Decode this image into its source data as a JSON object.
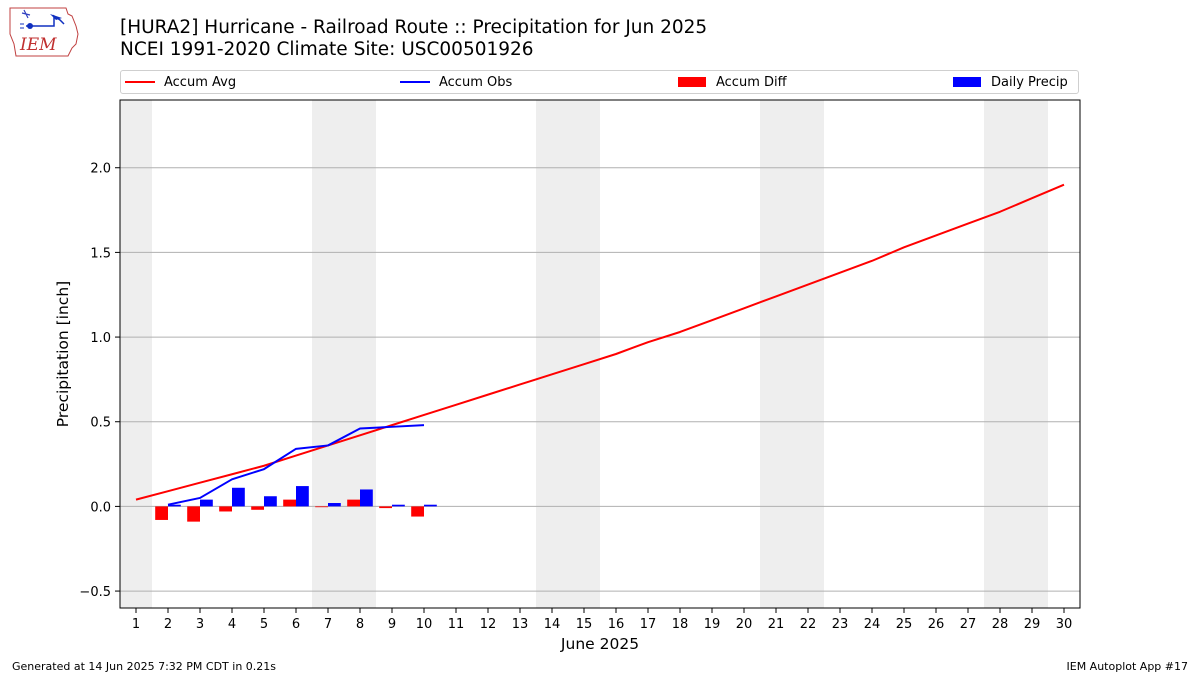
{
  "logo": {
    "text": "IEM"
  },
  "header": {
    "title": "[HURA2] Hurricane - Railroad Route :: Precipitation for Jun 2025",
    "subtitle": "NCEI 1991-2020 Climate Site: USC00501926"
  },
  "legend": {
    "items": [
      {
        "label": "Accum Avg",
        "kind": "line",
        "color": "#ff0000"
      },
      {
        "label": "Accum Obs",
        "kind": "line",
        "color": "#0000ff"
      },
      {
        "label": "Accum Diff",
        "kind": "bar",
        "color": "#ff0000"
      },
      {
        "label": "Daily Precip",
        "kind": "bar",
        "color": "#0000ff"
      }
    ]
  },
  "chart_data": {
    "type": "line",
    "xlabel": "June 2025",
    "ylabel": "Precipitation [inch]",
    "xlim": [
      0.5,
      30.5
    ],
    "ylim": [
      -0.6,
      2.4
    ],
    "yticks": [
      -0.5,
      0.0,
      0.5,
      1.0,
      1.5,
      2.0
    ],
    "ytick_labels": [
      "−0.5",
      "0.0",
      "0.5",
      "1.0",
      "1.5",
      "2.0"
    ],
    "xticks": [
      1,
      2,
      3,
      4,
      5,
      6,
      7,
      8,
      9,
      10,
      11,
      12,
      13,
      14,
      15,
      16,
      17,
      18,
      19,
      20,
      21,
      22,
      23,
      24,
      25,
      26,
      27,
      28,
      29,
      30
    ],
    "xtick_labels": [
      "1",
      "2",
      "3",
      "4",
      "5",
      "6",
      "7",
      "8",
      "9",
      "10",
      "11",
      "12",
      "13",
      "14",
      "15",
      "16",
      "17",
      "18",
      "19",
      "20",
      "21",
      "22",
      "23",
      "24",
      "25",
      "26",
      "27",
      "28",
      "29",
      "30"
    ],
    "grid": "y",
    "weekend_spans": [
      [
        0.5,
        1.5
      ],
      [
        6.5,
        8.5
      ],
      [
        13.5,
        15.5
      ],
      [
        20.5,
        22.5
      ],
      [
        27.5,
        29.5
      ]
    ],
    "weekend_color": "#eeeeee",
    "series": [
      {
        "name": "Accum Avg",
        "kind": "line",
        "color": "#ff0000",
        "x": [
          1,
          2,
          3,
          4,
          5,
          6,
          7,
          8,
          9,
          10,
          11,
          12,
          13,
          14,
          15,
          16,
          17,
          18,
          19,
          20,
          21,
          22,
          23,
          24,
          25,
          26,
          27,
          28,
          29,
          30
        ],
        "values": [
          0.04,
          0.09,
          0.14,
          0.19,
          0.24,
          0.3,
          0.36,
          0.42,
          0.48,
          0.54,
          0.6,
          0.66,
          0.72,
          0.78,
          0.84,
          0.9,
          0.97,
          1.03,
          1.1,
          1.17,
          1.24,
          1.31,
          1.38,
          1.45,
          1.53,
          1.6,
          1.67,
          1.74,
          1.82,
          1.9
        ]
      },
      {
        "name": "Accum Obs",
        "kind": "line",
        "color": "#0000ff",
        "x": [
          2,
          3,
          4,
          5,
          6,
          7,
          8,
          9,
          10
        ],
        "values": [
          0.01,
          0.05,
          0.16,
          0.22,
          0.34,
          0.36,
          0.46,
          0.47,
          0.48
        ]
      },
      {
        "name": "Accum Diff",
        "kind": "bar",
        "color": "#ff0000",
        "offset": -0.2,
        "x": [
          2,
          3,
          4,
          5,
          6,
          7,
          8,
          9,
          10
        ],
        "values": [
          -0.08,
          -0.09,
          -0.03,
          -0.02,
          0.04,
          0.0,
          0.04,
          -0.01,
          -0.06
        ]
      },
      {
        "name": "Daily Precip",
        "kind": "bar",
        "color": "#0000ff",
        "offset": 0.2,
        "x": [
          2,
          3,
          4,
          5,
          6,
          7,
          8,
          9,
          10
        ],
        "values": [
          0.01,
          0.04,
          0.11,
          0.06,
          0.12,
          0.02,
          0.1,
          0.01,
          0.01
        ]
      }
    ]
  },
  "footer": {
    "generated": "Generated at 14 Jun 2025 7:32 PM CDT in 0.21s",
    "app": "IEM Autoplot App #17"
  }
}
